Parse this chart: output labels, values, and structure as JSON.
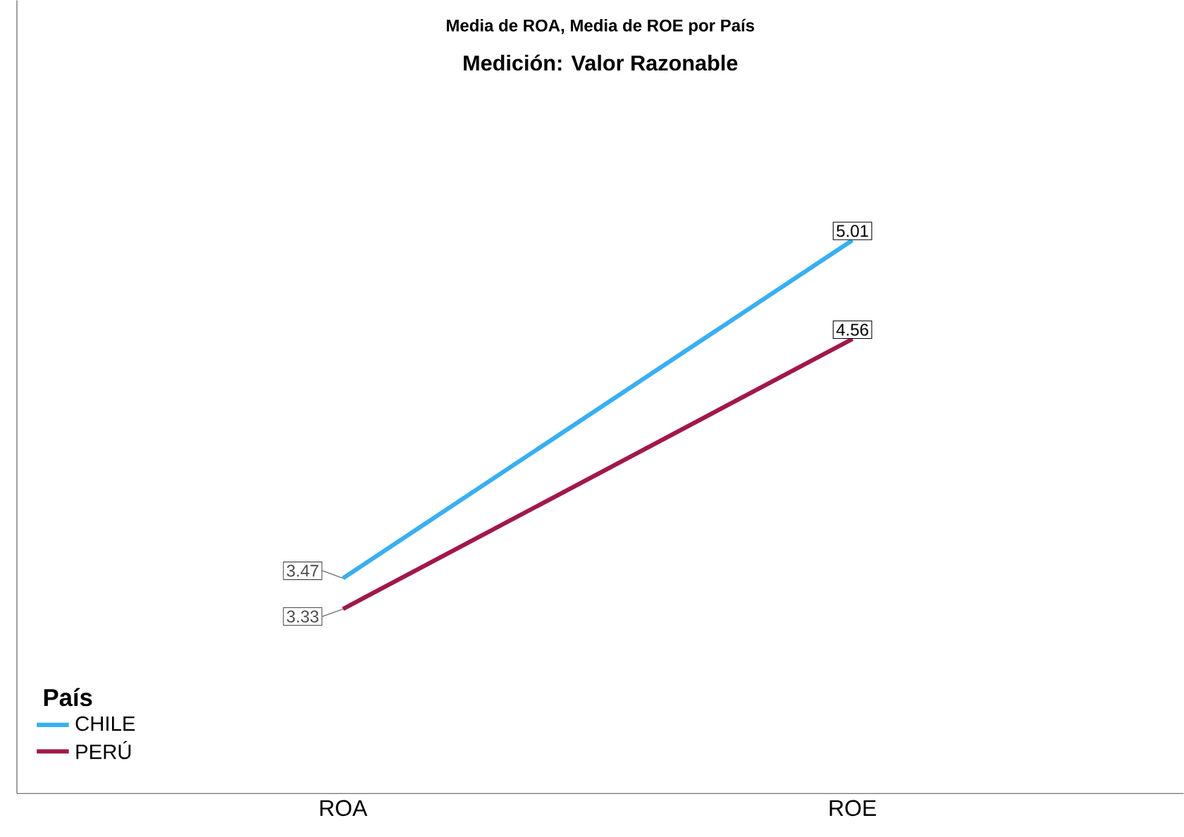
{
  "chart_data": {
    "type": "line",
    "title": "Media de ROA, Media de ROE por País",
    "subtitle": "Medición: Valor Razonable",
    "legend_title": "País",
    "categories": [
      "ROA",
      "ROE"
    ],
    "series": [
      {
        "name": "CHILE",
        "color": "#3aaff0",
        "values": [
          3.47,
          5.01
        ]
      },
      {
        "name": "PERÚ",
        "color": "#a0184c",
        "values": [
          3.33,
          4.56
        ]
      }
    ],
    "data_labels": true,
    "legend": "bottom left",
    "grid": false,
    "marker": "none",
    "line_style": "solid"
  }
}
